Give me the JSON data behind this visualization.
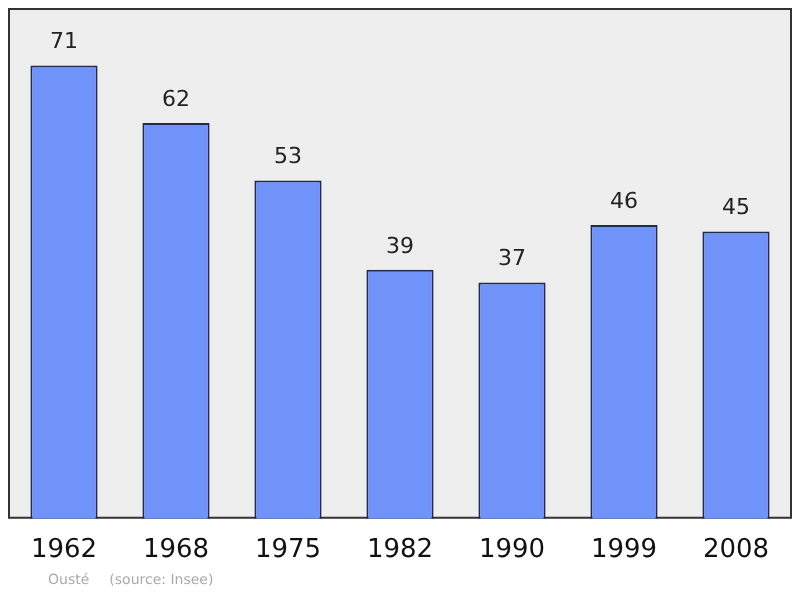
{
  "chart_data": {
    "type": "bar",
    "categories": [
      "1962",
      "1968",
      "1975",
      "1982",
      "1990",
      "1999",
      "2008"
    ],
    "values": [
      71,
      62,
      53,
      39,
      37,
      46,
      45
    ],
    "color": "#7093f9",
    "data_labels": true,
    "grid": false,
    "legend": false,
    "annotations": [
      "Ousté",
      "(source: Insee)"
    ]
  }
}
